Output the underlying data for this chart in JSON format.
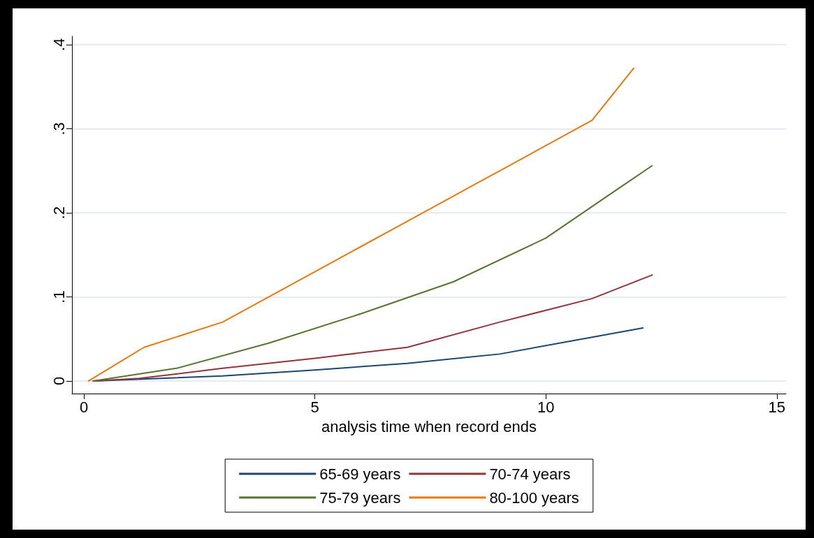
{
  "chart_data": {
    "type": "line",
    "xlabel": "analysis time when record ends",
    "xlim": [
      -0.26,
      15.2
    ],
    "xticks": [
      0,
      5,
      10,
      15
    ],
    "ylim": [
      -0.015,
      0.41
    ],
    "yticks": [
      {
        "value": 0,
        "label": "0"
      },
      {
        "value": 0.1,
        "label": ".1"
      },
      {
        "value": 0.2,
        "label": ".2"
      },
      {
        "value": 0.3,
        "label": ".3"
      },
      {
        "value": 0.4,
        "label": ".4"
      }
    ],
    "grid": "y",
    "legend": "bottom",
    "marker": "none",
    "line_style": "solid",
    "series": [
      {
        "name": "65-69 years",
        "color": "#1a476f",
        "x": [
          0.2,
          3,
          5,
          7,
          9,
          11,
          12.1
        ],
        "values": [
          0,
          0.006,
          0.013,
          0.021,
          0.032,
          0.052,
          0.063
        ]
      },
      {
        "name": "70-74 years",
        "color": "#90353b",
        "x": [
          0.2,
          1.2,
          3,
          5,
          7,
          9,
          11,
          12.3
        ],
        "values": [
          0,
          0.003,
          0.015,
          0.027,
          0.04,
          0.07,
          0.098,
          0.126
        ]
      },
      {
        "name": "75-79 years",
        "color": "#55752f",
        "x": [
          0.2,
          2,
          4,
          6,
          8,
          10,
          11.6,
          12.3
        ],
        "values": [
          0,
          0.015,
          0.045,
          0.08,
          0.118,
          0.17,
          0.23,
          0.256
        ]
      },
      {
        "name": "80-100 years",
        "color": "#e8790e",
        "x": [
          0.1,
          1.3,
          3,
          5,
          7,
          9,
          11,
          11.9
        ],
        "values": [
          0,
          0.04,
          0.07,
          0.13,
          0.19,
          0.25,
          0.31,
          0.372
        ]
      }
    ]
  }
}
